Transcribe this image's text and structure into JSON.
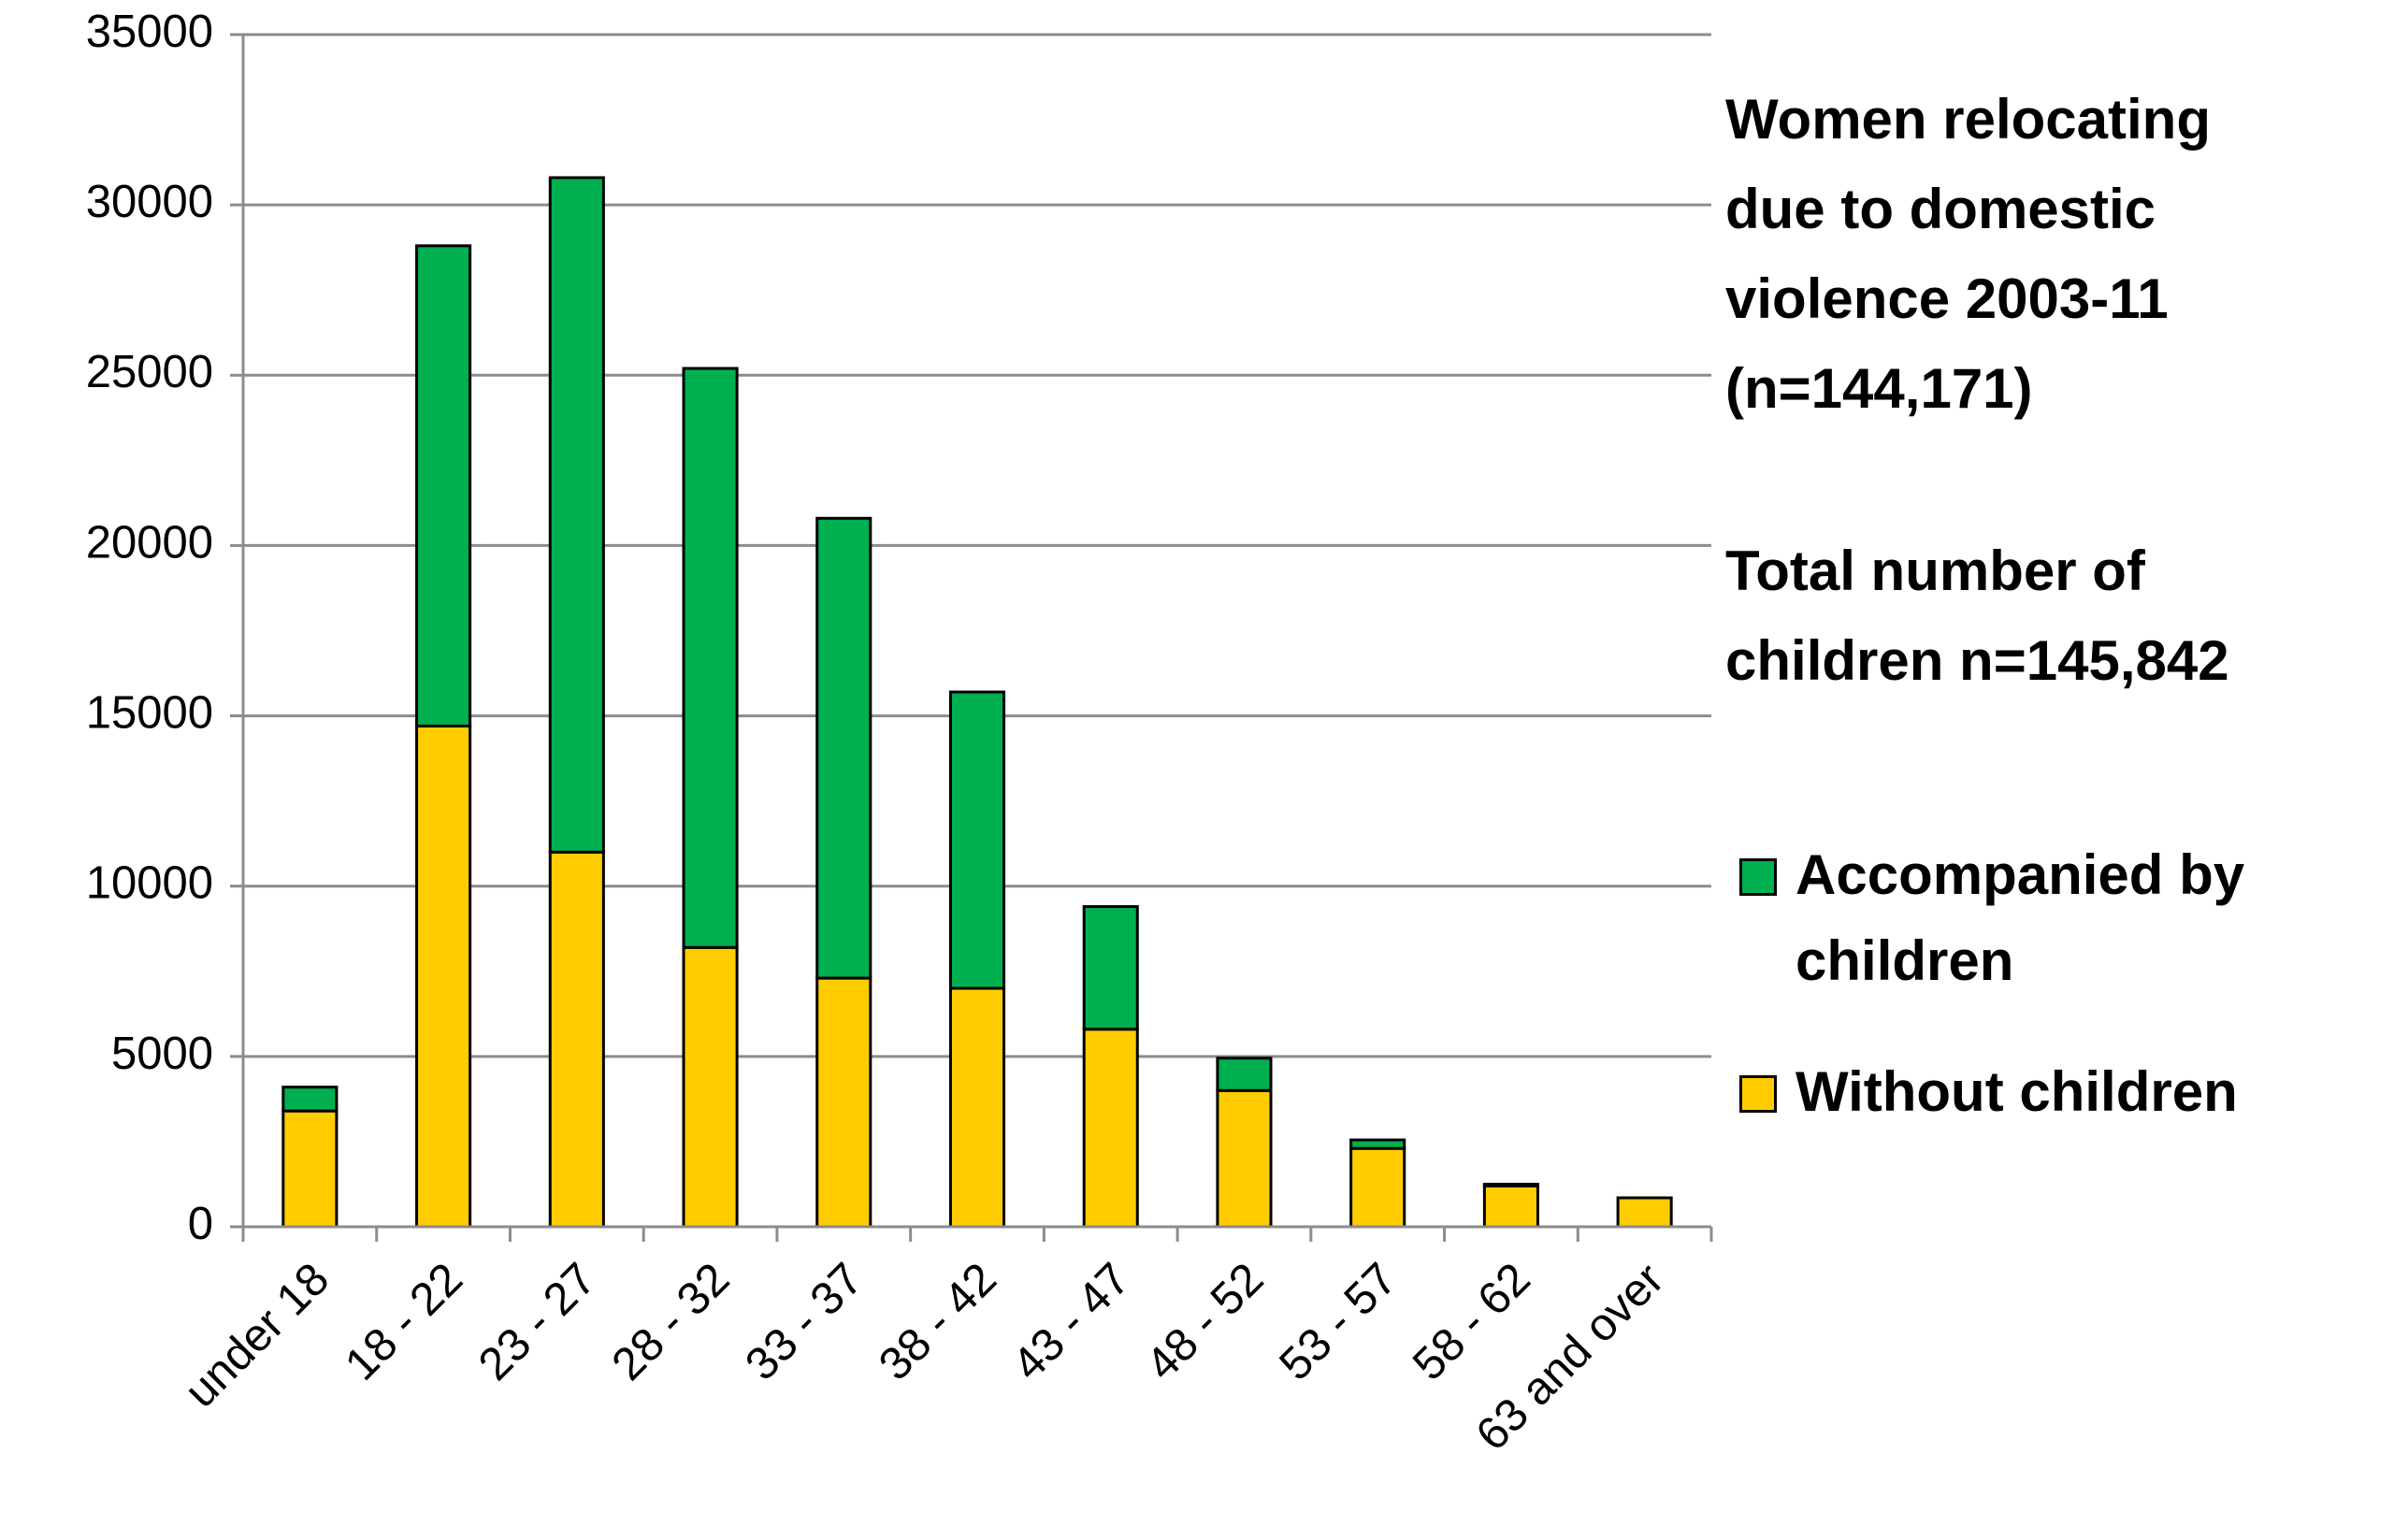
{
  "chart_data": {
    "type": "bar",
    "stacked": true,
    "categories": [
      "under 18",
      "18 - 22",
      "23 - 27",
      "28 - 32",
      "33 - 37",
      "38 - 42",
      "43 - 47",
      "48 - 52",
      "53 - 57",
      "58 - 62",
      "63 and over"
    ],
    "series": [
      {
        "name": "Without children",
        "color": "#FFCC00",
        "values": [
          3400,
          14700,
          11000,
          8200,
          7300,
          7000,
          5800,
          4000,
          2300,
          1200,
          850
        ]
      },
      {
        "name": "Accompanied by children",
        "color": "#00B050",
        "values": [
          700,
          14100,
          19800,
          17000,
          13500,
          8700,
          3600,
          950,
          250,
          50,
          0
        ]
      }
    ],
    "ylim": [
      0,
      35000
    ],
    "yticks": [
      0,
      5000,
      10000,
      15000,
      20000,
      25000,
      30000,
      35000
    ],
    "ytick_labels": [
      "0",
      "5000",
      "10000",
      "15000",
      "20000",
      "25000",
      "30000",
      "35000"
    ],
    "grid": true,
    "legend_position": "right",
    "xlabel": "",
    "ylabel": ""
  },
  "annotations": {
    "title_lines": [
      "Women relocating",
      "due to domestic",
      "violence 2003-11",
      "(n=144,171)"
    ],
    "children_lines": [
      "Total number of",
      "children n=145,842"
    ]
  },
  "legend": {
    "accompanied_lines": [
      "Accompanied by",
      "children"
    ],
    "without_label": "Without children"
  }
}
